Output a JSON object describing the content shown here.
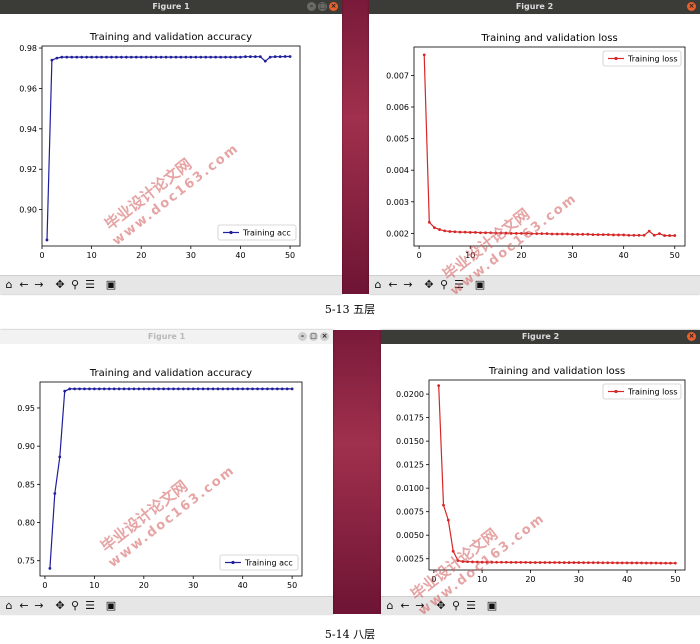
{
  "captions": [
    "5-13 五层",
    "5-14 八层"
  ],
  "watermark": {
    "line1": "毕业设计论文网",
    "line2": "www.doc163.com"
  },
  "toolbar_icons": [
    "home-icon",
    "back-icon",
    "forward-icon",
    "pan-icon",
    "zoom-icon",
    "configure-icon",
    "save-icon"
  ],
  "colors": {
    "acc": "#1f1f9c",
    "loss": "#d62728",
    "titlebar": "#3b3b37"
  },
  "windows": [
    {
      "id": "w1",
      "title": "Figure 1"
    },
    {
      "id": "w2",
      "title": "Figure 2"
    },
    {
      "id": "w3",
      "title": "Figure 1"
    },
    {
      "id": "w4",
      "title": "Figure 2"
    }
  ],
  "chart_data": [
    {
      "type": "line",
      "title": "Training and validation accuracy",
      "legend": "Training acc",
      "legend_position": "lower-right",
      "xlim": [
        0,
        52
      ],
      "ylim": [
        0.882,
        0.981
      ],
      "xticks": [
        0,
        10,
        20,
        30,
        40,
        50
      ],
      "yticks": [
        0.9,
        0.92,
        0.94,
        0.96,
        0.98
      ],
      "ytick_labels": [
        "0.90",
        "0.92",
        "0.94",
        "0.96",
        "0.98"
      ],
      "x": [
        1,
        2,
        3,
        4,
        5,
        6,
        7,
        8,
        9,
        10,
        11,
        12,
        13,
        14,
        15,
        16,
        17,
        18,
        19,
        20,
        21,
        22,
        23,
        24,
        25,
        26,
        27,
        28,
        29,
        30,
        31,
        32,
        33,
        34,
        35,
        36,
        37,
        38,
        39,
        40,
        41,
        42,
        43,
        44,
        45,
        46,
        47,
        48,
        49,
        50
      ],
      "y": [
        0.885,
        0.974,
        0.975,
        0.9755,
        0.9755,
        0.9755,
        0.9755,
        0.9755,
        0.9755,
        0.9755,
        0.9755,
        0.9755,
        0.9755,
        0.9755,
        0.9755,
        0.9755,
        0.9755,
        0.9755,
        0.9755,
        0.9755,
        0.9755,
        0.9755,
        0.9755,
        0.9755,
        0.9755,
        0.9755,
        0.9755,
        0.9755,
        0.9755,
        0.9755,
        0.9755,
        0.9755,
        0.9755,
        0.9755,
        0.9755,
        0.9755,
        0.9755,
        0.9755,
        0.9755,
        0.9755,
        0.9757,
        0.9757,
        0.9757,
        0.9757,
        0.9735,
        0.9755,
        0.9757,
        0.9757,
        0.9758,
        0.9758
      ]
    },
    {
      "type": "line",
      "title": "Training and validation loss",
      "legend": "Training loss",
      "legend_position": "upper-right",
      "xlim": [
        -1,
        52
      ],
      "ylim": [
        0.0016,
        0.0079
      ],
      "xticks": [
        0,
        10,
        20,
        30,
        40,
        50
      ],
      "yticks": [
        0.002,
        0.003,
        0.004,
        0.005,
        0.006,
        0.007
      ],
      "ytick_labels": [
        "0.002",
        "0.003",
        "0.004",
        "0.005",
        "0.006",
        "0.007"
      ],
      "x": [
        1,
        2,
        3,
        4,
        5,
        6,
        7,
        8,
        9,
        10,
        11,
        12,
        13,
        14,
        15,
        16,
        17,
        18,
        19,
        20,
        21,
        22,
        23,
        24,
        25,
        26,
        27,
        28,
        29,
        30,
        31,
        32,
        33,
        34,
        35,
        36,
        37,
        38,
        39,
        40,
        41,
        42,
        43,
        44,
        45,
        46,
        47,
        48,
        49,
        50
      ],
      "y": [
        0.00765,
        0.00235,
        0.00218,
        0.00212,
        0.00208,
        0.00206,
        0.00205,
        0.00204,
        0.00204,
        0.00203,
        0.00203,
        0.00202,
        0.00202,
        0.00202,
        0.00201,
        0.00201,
        0.00201,
        0.002,
        0.002,
        0.002,
        0.002,
        0.00199,
        0.00199,
        0.00199,
        0.00199,
        0.00198,
        0.00198,
        0.00198,
        0.00198,
        0.00197,
        0.00197,
        0.00197,
        0.00197,
        0.00196,
        0.00196,
        0.00196,
        0.00196,
        0.00195,
        0.00195,
        0.00195,
        0.00194,
        0.00194,
        0.00194,
        0.00194,
        0.00207,
        0.00194,
        0.00199,
        0.00193,
        0.00193,
        0.00193
      ]
    },
    {
      "type": "line",
      "title": "Training and validation accuracy",
      "legend": "Training acc",
      "legend_position": "lower-right",
      "xlim": [
        -1,
        52
      ],
      "ylim": [
        0.73,
        0.984
      ],
      "xticks": [
        0,
        10,
        20,
        30,
        40,
        50
      ],
      "yticks": [
        0.75,
        0.8,
        0.85,
        0.9,
        0.95
      ],
      "ytick_labels": [
        "0.75",
        "0.80",
        "0.85",
        "0.90",
        "0.95"
      ],
      "x": [
        1,
        2,
        3,
        4,
        5,
        6,
        7,
        8,
        9,
        10,
        11,
        12,
        13,
        14,
        15,
        16,
        17,
        18,
        19,
        20,
        21,
        22,
        23,
        24,
        25,
        26,
        27,
        28,
        29,
        30,
        31,
        32,
        33,
        34,
        35,
        36,
        37,
        38,
        39,
        40,
        41,
        42,
        43,
        44,
        45,
        46,
        47,
        48,
        49,
        50
      ],
      "y": [
        0.74,
        0.838,
        0.886,
        0.972,
        0.975,
        0.975,
        0.975,
        0.975,
        0.975,
        0.975,
        0.975,
        0.975,
        0.975,
        0.975,
        0.975,
        0.975,
        0.975,
        0.975,
        0.975,
        0.975,
        0.975,
        0.975,
        0.975,
        0.975,
        0.975,
        0.975,
        0.975,
        0.975,
        0.975,
        0.975,
        0.975,
        0.975,
        0.975,
        0.975,
        0.975,
        0.975,
        0.975,
        0.975,
        0.975,
        0.975,
        0.975,
        0.975,
        0.975,
        0.975,
        0.975,
        0.975,
        0.975,
        0.975,
        0.975,
        0.975
      ]
    },
    {
      "type": "line",
      "title": "Training and validation loss",
      "legend": "Training loss",
      "legend_position": "upper-right",
      "xlim": [
        -1,
        52
      ],
      "ylim": [
        0.0013,
        0.0215
      ],
      "xticks": [
        0,
        10,
        20,
        30,
        40,
        50
      ],
      "yticks": [
        0.0025,
        0.005,
        0.0075,
        0.01,
        0.0125,
        0.015,
        0.0175,
        0.02
      ],
      "ytick_labels": [
        "0.0025",
        "0.0050",
        "0.0075",
        "0.0100",
        "0.0125",
        "0.0150",
        "0.0175",
        "0.0200"
      ],
      "x": [
        1,
        2,
        3,
        4,
        5,
        6,
        7,
        8,
        9,
        10,
        11,
        12,
        13,
        14,
        15,
        16,
        17,
        18,
        19,
        20,
        21,
        22,
        23,
        24,
        25,
        26,
        27,
        28,
        29,
        30,
        31,
        32,
        33,
        34,
        35,
        36,
        37,
        38,
        39,
        40,
        41,
        42,
        43,
        44,
        45,
        46,
        47,
        48,
        49,
        50
      ],
      "y": [
        0.0209,
        0.0082,
        0.0066,
        0.0033,
        0.0023,
        0.0022,
        0.00218,
        0.00216,
        0.00215,
        0.00214,
        0.00213,
        0.00213,
        0.00212,
        0.00212,
        0.00212,
        0.00211,
        0.00211,
        0.00211,
        0.00211,
        0.0021,
        0.0021,
        0.0021,
        0.0021,
        0.0021,
        0.0021,
        0.0021,
        0.00209,
        0.00209,
        0.00209,
        0.00209,
        0.00208,
        0.00208,
        0.00208,
        0.00208,
        0.00207,
        0.00207,
        0.00207,
        0.00206,
        0.00206,
        0.00206,
        0.00205,
        0.00205,
        0.00205,
        0.00204,
        0.00204,
        0.00204,
        0.00203,
        0.00203,
        0.00203,
        0.00203
      ]
    }
  ]
}
